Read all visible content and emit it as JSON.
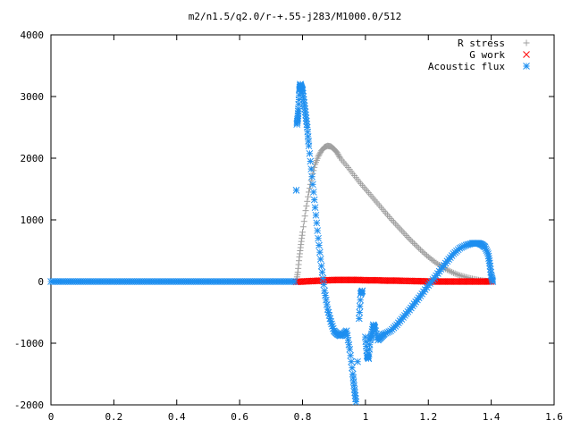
{
  "chart_data": {
    "type": "scatter",
    "title": "m2/n1.5/q2.0/r-+.55-j283/M1000.0/512",
    "xlabel": "",
    "ylabel": "",
    "xlim": [
      0,
      1.6
    ],
    "ylim": [
      -2000,
      4000
    ],
    "xticks": [
      "0",
      "0.2",
      "0.4",
      "0.6",
      "0.8",
      "1",
      "1.2",
      "1.4",
      "1.6"
    ],
    "yticks": [
      "-2000",
      "-1000",
      "0",
      "1000",
      "2000",
      "3000",
      "4000"
    ],
    "grid": false,
    "legend_position": "top-right",
    "series": [
      {
        "name": "R stress",
        "marker": "+",
        "color": "#a0a0a0",
        "x": [
          0.78,
          0.785,
          0.79,
          0.795,
          0.8,
          0.81,
          0.82,
          0.83,
          0.84,
          0.85,
          0.86,
          0.87,
          0.88,
          0.89,
          0.9,
          0.91,
          0.92,
          0.94,
          0.96,
          0.98,
          1.0,
          1.02,
          1.04,
          1.06,
          1.08,
          1.1,
          1.12,
          1.14,
          1.16,
          1.18,
          1.2,
          1.22,
          1.24,
          1.26,
          1.28,
          1.3,
          1.32,
          1.34,
          1.36,
          1.38,
          1.39,
          1.4
        ],
        "y": [
          0,
          150,
          400,
          600,
          800,
          1150,
          1450,
          1700,
          1900,
          2030,
          2120,
          2180,
          2200,
          2190,
          2150,
          2090,
          2000,
          1880,
          1750,
          1620,
          1500,
          1380,
          1260,
          1140,
          1020,
          910,
          800,
          690,
          590,
          490,
          400,
          320,
          250,
          190,
          140,
          100,
          70,
          45,
          25,
          10,
          5,
          0
        ]
      },
      {
        "name": "G work",
        "marker": "x",
        "color": "#ff0000",
        "x": [
          0.78,
          0.8,
          0.82,
          0.84,
          0.86,
          0.88,
          0.9,
          0.92,
          0.94,
          0.96,
          0.98,
          1.0,
          1.02,
          1.04,
          1.06,
          1.08,
          1.1,
          1.12,
          1.14,
          1.16,
          1.18,
          1.2,
          1.22,
          1.24,
          1.26,
          1.28,
          1.3,
          1.32,
          1.34,
          1.36,
          1.38,
          1.4
        ],
        "y": [
          -5,
          0,
          5,
          10,
          15,
          20,
          25,
          25,
          25,
          25,
          25,
          20,
          20,
          20,
          15,
          15,
          15,
          10,
          10,
          5,
          5,
          0,
          0,
          0,
          0,
          0,
          0,
          0,
          0,
          0,
          0,
          0
        ]
      },
      {
        "name": "Acoustic flux",
        "marker": "*",
        "color": "#1e8ff0",
        "x": [
          0.0,
          0.025,
          0.05,
          0.075,
          0.1,
          0.125,
          0.15,
          0.175,
          0.2,
          0.225,
          0.25,
          0.275,
          0.3,
          0.325,
          0.35,
          0.375,
          0.4,
          0.425,
          0.45,
          0.475,
          0.5,
          0.525,
          0.55,
          0.575,
          0.6,
          0.625,
          0.65,
          0.675,
          0.7,
          0.725,
          0.75,
          0.775,
          0.78,
          0.782,
          0.785,
          0.787,
          0.79,
          0.793,
          0.796,
          0.8,
          0.805,
          0.81,
          0.815,
          0.82,
          0.83,
          0.84,
          0.85,
          0.86,
          0.87,
          0.88,
          0.89,
          0.9,
          0.91,
          0.92,
          0.93,
          0.94,
          0.95,
          0.96,
          0.965,
          0.97,
          0.975,
          0.98,
          0.985,
          0.99,
          1.0,
          1.005,
          1.01,
          1.015,
          1.02,
          1.025,
          1.03,
          1.04,
          1.05,
          1.06,
          1.08,
          1.1,
          1.12,
          1.14,
          1.16,
          1.18,
          1.2,
          1.22,
          1.24,
          1.26,
          1.28,
          1.3,
          1.32,
          1.34,
          1.35,
          1.36,
          1.37,
          1.38,
          1.39,
          1.395,
          1.4,
          1.405
        ],
        "y": [
          0,
          0,
          0,
          0,
          0,
          0,
          0,
          0,
          0,
          0,
          0,
          0,
          0,
          0,
          0,
          0,
          0,
          0,
          0,
          0,
          0,
          0,
          0,
          0,
          0,
          0,
          0,
          0,
          0,
          0,
          0,
          0,
          1480,
          2550,
          2650,
          2800,
          3100,
          3200,
          3150,
          3100,
          2900,
          2700,
          2500,
          2200,
          1700,
          1200,
          700,
          250,
          -150,
          -450,
          -650,
          -800,
          -850,
          -880,
          -850,
          -800,
          -1100,
          -1500,
          -1750,
          -1950,
          -1300,
          -600,
          -200,
          -150,
          -900,
          -1200,
          -1250,
          -950,
          -850,
          -700,
          -750,
          -950,
          -900,
          -850,
          -800,
          -700,
          -580,
          -460,
          -330,
          -200,
          -60,
          60,
          200,
          330,
          450,
          540,
          590,
          620,
          620,
          620,
          600,
          560,
          450,
          300,
          100,
          0
        ]
      }
    ]
  }
}
